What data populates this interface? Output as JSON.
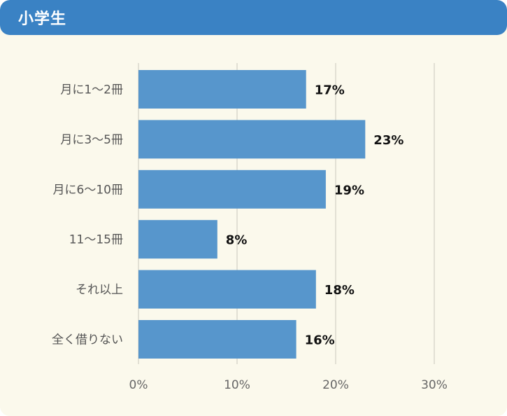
{
  "header": {
    "title": "小学生"
  },
  "colors": {
    "accent": "#3a82c4",
    "bar": "#5796cc",
    "background": "#fbf9ec",
    "grid": "#d9d7cc"
  },
  "chart_data": {
    "type": "bar",
    "orientation": "horizontal",
    "title": "",
    "xlabel": "",
    "ylabel": "",
    "categories": [
      "月に1～2冊",
      "月に3～5冊",
      "月に6～10冊",
      "11～15冊",
      "それ以上",
      "全く借りない"
    ],
    "values": [
      17,
      23,
      19,
      8,
      18,
      16
    ],
    "value_labels": [
      "17%",
      "23%",
      "19%",
      "8%",
      "18%",
      "16%"
    ],
    "xlim": [
      0,
      30
    ],
    "xticks": [
      0,
      10,
      20,
      30
    ],
    "xtick_labels": [
      "0%",
      "10%",
      "20%",
      "30%"
    ],
    "grid": "vertical",
    "legend": "none"
  }
}
